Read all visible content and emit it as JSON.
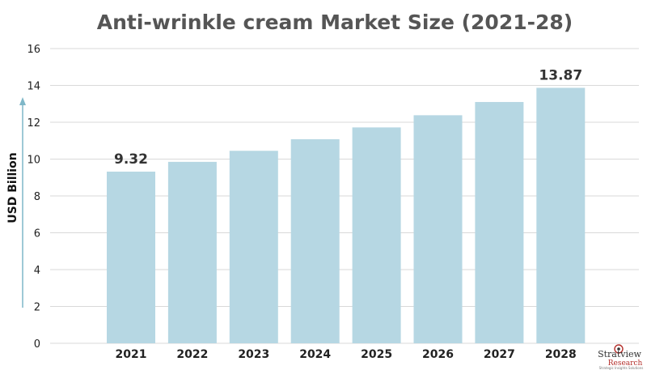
{
  "chart_data": {
    "type": "bar",
    "title": "Anti-wrinkle cream Market Size (2021-28)",
    "ylabel": "USD Billion",
    "xlabel": "",
    "categories": [
      "2021",
      "2022",
      "2023",
      "2024",
      "2025",
      "2026",
      "2027",
      "2028"
    ],
    "values": [
      9.32,
      9.85,
      10.45,
      11.08,
      11.72,
      12.38,
      13.1,
      13.87
    ],
    "data_labels": [
      {
        "index": 0,
        "text": "9.32"
      },
      {
        "index": 7,
        "text": "13.87"
      }
    ],
    "ylim": [
      0,
      16
    ],
    "yticks": [
      0,
      2,
      4,
      6,
      8,
      10,
      12,
      14,
      16
    ],
    "grid": true,
    "legend": "none",
    "bar_color": "#b6d7e3",
    "grid_color": "#d9d9d9",
    "axis_arrow_color": "#7fb7c8"
  },
  "logo": {
    "name": "Stratview",
    "sub": "Research",
    "tagline": "Strategic Insights Solutions"
  }
}
